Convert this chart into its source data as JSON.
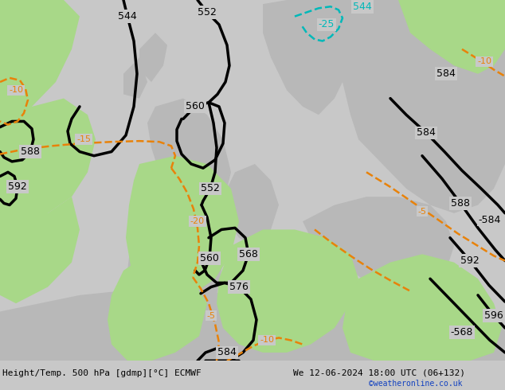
{
  "title_left": "Height/Temp. 500 hPa [gdmp][°C] ECMWF",
  "title_right": "We 12-06-2024 18:00 UTC (06+132)",
  "copyright": "©weatheronline.co.uk",
  "bg_color": "#c8c8c8",
  "sea_color": "#c8c8c8",
  "land_color": "#b8b8b8",
  "green_color": "#a8d888",
  "figsize": [
    6.34,
    4.9
  ],
  "dpi": 100
}
